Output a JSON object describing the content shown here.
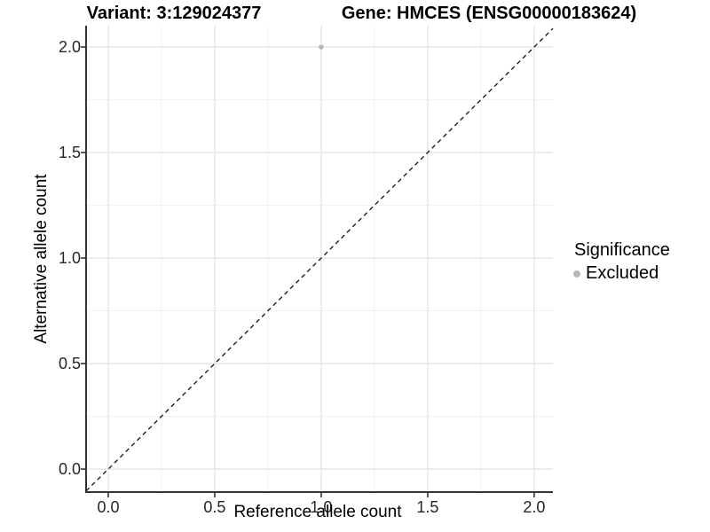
{
  "titles": {
    "left": "Variant: 3:129024377",
    "right": "Gene: HMCES (ENSG00000183624)"
  },
  "chart_data": {
    "type": "scatter",
    "title_left": "Variant: 3:129024377",
    "title_right": "Gene: HMCES (ENSG00000183624)",
    "xlabel": "Reference allele count",
    "ylabel": "Alternative allele count",
    "points": [
      {
        "x": 1.0,
        "y": 2.0,
        "significance": "Excluded"
      }
    ],
    "reference_line": {
      "type": "diagonal",
      "slope": 1,
      "intercept": 0,
      "style": "dashed"
    },
    "xlim": [
      -0.104,
      2.088
    ],
    "ylim": [
      -0.109,
      2.101
    ],
    "xticks": [
      0.0,
      0.5,
      1.0,
      1.5,
      2.0
    ],
    "yticks": [
      0.0,
      0.5,
      1.0,
      1.5,
      2.0
    ],
    "xtick_labels": [
      "0.0",
      "0.5",
      "1.0",
      "1.5",
      "2.0"
    ],
    "ytick_labels": [
      "0.0",
      "0.5",
      "1.0",
      "1.5",
      "2.0"
    ],
    "minor_xticks": [
      0.25,
      0.75,
      1.25,
      1.75
    ],
    "minor_yticks": [
      0.25,
      0.75,
      1.25,
      1.75
    ],
    "grid": true,
    "legend": {
      "title": "Significance",
      "position": "right",
      "entries": [
        {
          "label": "Excluded",
          "shape": "circle",
          "color": "#b8b8b8"
        }
      ]
    }
  },
  "colors": {
    "background": "#ffffff",
    "point": "#b8b8b8",
    "grid_major": "#e4e4e4",
    "grid_minor": "#f0f0f0",
    "axis_line": "#333333",
    "tick_mark": "#333333",
    "reference_line": "#1f1f1f",
    "text": "#000000"
  }
}
